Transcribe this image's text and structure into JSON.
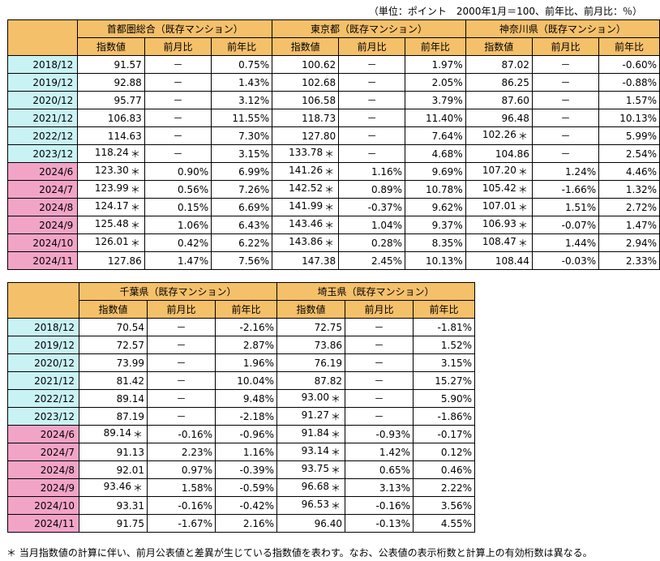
{
  "unit_note": "（単位：ポイント　2000年1月＝100、前年比、前月比：％）",
  "column_labels": {
    "index": "指数値",
    "mom": "前月比",
    "yoy": "前年比"
  },
  "dash": "－",
  "table1": {
    "regions": [
      "首都圏総合（既存マンション）",
      "東京都（既存マンション）",
      "神奈川県（既存マンション）"
    ],
    "rows": [
      {
        "label": "2018/12",
        "kind": "year",
        "cells": [
          [
            "91.57",
            "",
            "－",
            "0.75%"
          ],
          [
            "100.62",
            "",
            "－",
            "1.97%"
          ],
          [
            "87.02",
            "",
            "－",
            "-0.60%"
          ]
        ]
      },
      {
        "label": "2019/12",
        "kind": "year",
        "cells": [
          [
            "92.88",
            "",
            "－",
            "1.43%"
          ],
          [
            "102.68",
            "",
            "－",
            "2.05%"
          ],
          [
            "86.25",
            "",
            "－",
            "-0.88%"
          ]
        ]
      },
      {
        "label": "2020/12",
        "kind": "year",
        "cells": [
          [
            "95.77",
            "",
            "－",
            "3.12%"
          ],
          [
            "106.58",
            "",
            "－",
            "3.79%"
          ],
          [
            "87.60",
            "",
            "－",
            "1.57%"
          ]
        ]
      },
      {
        "label": "2021/12",
        "kind": "year",
        "cells": [
          [
            "106.83",
            "",
            "－",
            "11.55%"
          ],
          [
            "118.73",
            "",
            "－",
            "11.40%"
          ],
          [
            "96.48",
            "",
            "－",
            "10.13%"
          ]
        ]
      },
      {
        "label": "2022/12",
        "kind": "year",
        "cells": [
          [
            "114.63",
            "",
            "－",
            "7.30%"
          ],
          [
            "127.80",
            "",
            "－",
            "7.64%"
          ],
          [
            "102.26",
            "＊",
            "－",
            "5.99%"
          ]
        ]
      },
      {
        "label": "2023/12",
        "kind": "year",
        "cells": [
          [
            "118.24",
            "＊",
            "－",
            "3.15%"
          ],
          [
            "133.78",
            "＊",
            "－",
            "4.68%"
          ],
          [
            "104.86",
            "",
            "－",
            "2.54%"
          ]
        ]
      },
      {
        "label": "2024/6",
        "kind": "month",
        "cells": [
          [
            "123.30",
            "＊",
            "0.90%",
            "6.99%"
          ],
          [
            "141.26",
            "＊",
            "1.16%",
            "9.69%"
          ],
          [
            "107.20",
            "＊",
            "1.24%",
            "4.46%"
          ]
        ]
      },
      {
        "label": "2024/7",
        "kind": "month",
        "cells": [
          [
            "123.99",
            "＊",
            "0.56%",
            "7.26%"
          ],
          [
            "142.52",
            "＊",
            "0.89%",
            "10.78%"
          ],
          [
            "105.42",
            "＊",
            "-1.66%",
            "1.32%"
          ]
        ]
      },
      {
        "label": "2024/8",
        "kind": "month",
        "cells": [
          [
            "124.17",
            "＊",
            "0.15%",
            "6.69%"
          ],
          [
            "141.99",
            "＊",
            "-0.37%",
            "9.62%"
          ],
          [
            "107.01",
            "＊",
            "1.51%",
            "2.72%"
          ]
        ]
      },
      {
        "label": "2024/9",
        "kind": "month",
        "cells": [
          [
            "125.48",
            "＊",
            "1.06%",
            "6.43%"
          ],
          [
            "143.46",
            "＊",
            "1.04%",
            "9.37%"
          ],
          [
            "106.93",
            "＊",
            "-0.07%",
            "1.47%"
          ]
        ]
      },
      {
        "label": "2024/10",
        "kind": "month",
        "cells": [
          [
            "126.01",
            "＊",
            "0.42%",
            "6.22%"
          ],
          [
            "143.86",
            "＊",
            "0.28%",
            "8.35%"
          ],
          [
            "108.47",
            "＊",
            "1.44%",
            "2.94%"
          ]
        ]
      },
      {
        "label": "2024/11",
        "kind": "month",
        "cells": [
          [
            "127.86",
            "",
            "1.47%",
            "7.56%"
          ],
          [
            "147.38",
            "",
            "2.45%",
            "10.13%"
          ],
          [
            "108.44",
            "",
            "-0.03%",
            "2.33%"
          ]
        ]
      }
    ]
  },
  "table2": {
    "regions": [
      "千葉県（既存マンション）",
      "埼玉県（既存マンション）"
    ],
    "rows": [
      {
        "label": "2018/12",
        "kind": "year",
        "cells": [
          [
            "70.54",
            "",
            "－",
            "-2.16%"
          ],
          [
            "72.75",
            "",
            "－",
            "-1.81%"
          ]
        ]
      },
      {
        "label": "2019/12",
        "kind": "year",
        "cells": [
          [
            "72.57",
            "",
            "－",
            "2.87%"
          ],
          [
            "73.86",
            "",
            "－",
            "1.52%"
          ]
        ]
      },
      {
        "label": "2020/12",
        "kind": "year",
        "cells": [
          [
            "73.99",
            "",
            "－",
            "1.96%"
          ],
          [
            "76.19",
            "",
            "－",
            "3.15%"
          ]
        ]
      },
      {
        "label": "2021/12",
        "kind": "year",
        "cells": [
          [
            "81.42",
            "",
            "－",
            "10.04%"
          ],
          [
            "87.82",
            "",
            "－",
            "15.27%"
          ]
        ]
      },
      {
        "label": "2022/12",
        "kind": "year",
        "cells": [
          [
            "89.14",
            "",
            "－",
            "9.48%"
          ],
          [
            "93.00",
            "＊",
            "－",
            "5.90%"
          ]
        ]
      },
      {
        "label": "2023/12",
        "kind": "year",
        "cells": [
          [
            "87.19",
            "",
            "－",
            "-2.18%"
          ],
          [
            "91.27",
            "＊",
            "－",
            "-1.86%"
          ]
        ]
      },
      {
        "label": "2024/6",
        "kind": "month",
        "cells": [
          [
            "89.14",
            "＊",
            "-0.16%",
            "-0.96%"
          ],
          [
            "91.84",
            "＊",
            "-0.93%",
            "-0.17%"
          ]
        ]
      },
      {
        "label": "2024/7",
        "kind": "month",
        "cells": [
          [
            "91.13",
            "",
            "2.23%",
            "1.16%"
          ],
          [
            "93.14",
            "＊",
            "1.42%",
            "0.12%"
          ]
        ]
      },
      {
        "label": "2024/8",
        "kind": "month",
        "cells": [
          [
            "92.01",
            "",
            "0.97%",
            "-0.39%"
          ],
          [
            "93.75",
            "＊",
            "0.65%",
            "0.46%"
          ]
        ]
      },
      {
        "label": "2024/9",
        "kind": "month",
        "cells": [
          [
            "93.46",
            "＊",
            "1.58%",
            "-0.59%"
          ],
          [
            "96.68",
            "＊",
            "3.13%",
            "2.22%"
          ]
        ]
      },
      {
        "label": "2024/10",
        "kind": "month",
        "cells": [
          [
            "93.31",
            "",
            "-0.16%",
            "-0.42%"
          ],
          [
            "96.53",
            "＊",
            "-0.16%",
            "3.56%"
          ]
        ]
      },
      {
        "label": "2024/11",
        "kind": "month",
        "cells": [
          [
            "91.75",
            "",
            "-1.67%",
            "2.16%"
          ],
          [
            "96.40",
            "",
            "-0.13%",
            "4.55%"
          ]
        ]
      }
    ]
  },
  "footnote": "＊ 当月指数値の計算に伴い、前月公表値と差異が生じている指数値を表わす。なお、公表値の表示桁数と計算上の有効桁数は異なる。",
  "colors": {
    "header": "#F5C06A",
    "year_row": "#C9F2F5",
    "month_row": "#F2A4C7"
  }
}
